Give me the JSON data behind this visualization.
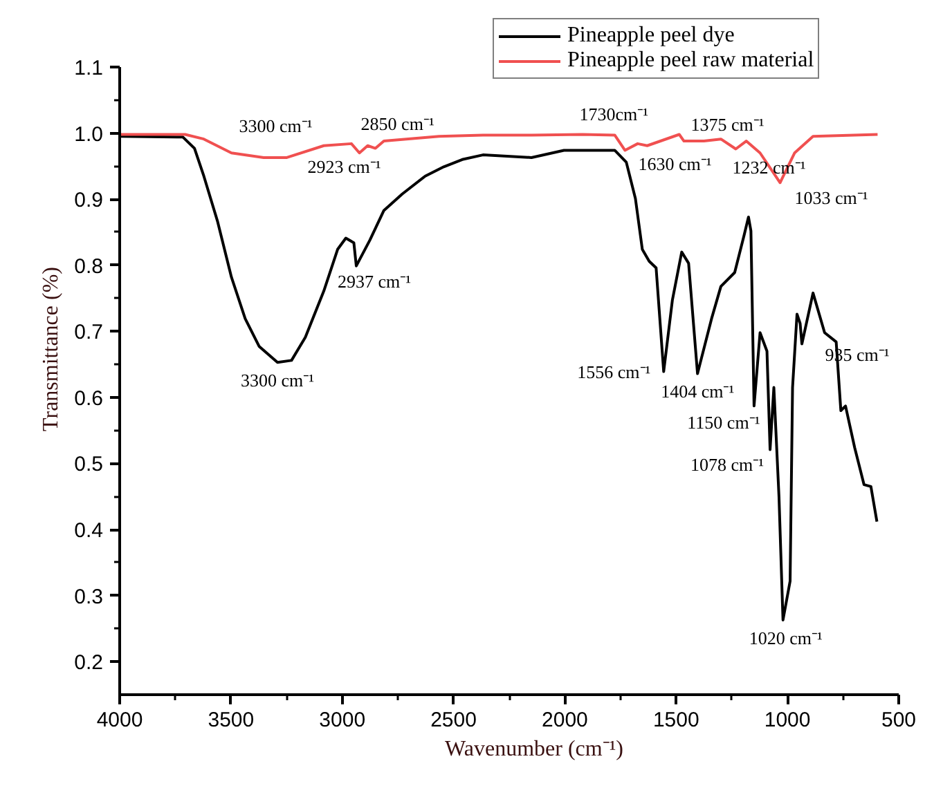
{
  "chart_data": {
    "type": "line",
    "xlabel": "Wavenumber (cm⁻¹)",
    "ylabel": "Transmittance (%)",
    "xlim": [
      4000,
      500
    ],
    "ylim": [
      0.15,
      1.1
    ],
    "xticks": [
      4000,
      {
        "value": 3750,
        "label": null
      },
      3500,
      {
        "value": 3250,
        "label": null
      },
      3000,
      {
        "value": 2750,
        "label": null
      },
      2500,
      {
        "value": 2250,
        "label": null
      },
      2000,
      {
        "value": 1750,
        "label": null
      },
      1500,
      {
        "value": 1250,
        "label": null
      },
      1000,
      {
        "value": 750,
        "label": null
      },
      500
    ],
    "yticks": [
      0.2,
      {
        "value": 0.25,
        "label": null
      },
      0.3,
      {
        "value": 0.35,
        "label": null
      },
      0.4,
      {
        "value": 0.45,
        "label": null
      },
      0.5,
      {
        "value": 0.55,
        "label": null
      },
      0.6,
      {
        "value": 0.65,
        "label": null
      },
      0.7,
      {
        "value": 0.75,
        "label": null
      },
      0.8,
      {
        "value": 0.85,
        "label": null
      },
      0.9,
      {
        "value": 0.95,
        "label": null
      },
      {
        "value": 1.0,
        "label": "1.0"
      },
      {
        "value": 1.05,
        "label": null
      },
      1.1
    ],
    "grid": false,
    "legend": "top right",
    "line_style": "solid",
    "marker": "none",
    "series": [
      {
        "name": "Pineapple peel dye",
        "color": "#000000",
        "x": [
          3996,
          3716,
          3664,
          3622,
          3560,
          3498,
          3436,
          3373,
          3291,
          3228,
          3166,
          3083,
          3021,
          2984,
          2948,
          2937,
          2876,
          2813,
          2730,
          2627,
          2544,
          2461,
          2368,
          2150,
          2004,
          1776,
          1724,
          1683,
          1652,
          1621,
          1590,
          1556,
          1517,
          1475,
          1444,
          1404,
          1341,
          1299,
          1237,
          1195,
          1175,
          1164,
          1150,
          1123,
          1092,
          1078,
          1061,
          1038,
          1020,
          988,
          977,
          957,
          943,
          935,
          885,
          833,
          781,
          760,
          739,
          698,
          656,
          625,
          598
        ],
        "values": [
          0.995,
          0.994,
          0.977,
          0.935,
          0.866,
          0.782,
          0.719,
          0.677,
          0.653,
          0.656,
          0.691,
          0.761,
          0.824,
          0.841,
          0.834,
          0.799,
          0.838,
          0.883,
          0.908,
          0.935,
          0.949,
          0.96,
          0.967,
          0.963,
          0.974,
          0.974,
          0.956,
          0.901,
          0.824,
          0.806,
          0.796,
          0.639,
          0.747,
          0.82,
          0.803,
          0.636,
          0.719,
          0.768,
          0.789,
          0.845,
          0.873,
          0.852,
          0.587,
          0.698,
          0.67,
          0.521,
          0.615,
          0.45,
          0.263,
          0.322,
          0.615,
          0.726,
          0.712,
          0.681,
          0.758,
          0.698,
          0.684,
          0.58,
          0.587,
          0.524,
          0.468,
          0.465,
          0.412
        ]
      },
      {
        "name": "Pineapple peel raw material",
        "color": "#f05050",
        "x": [
          3996,
          3706,
          3622,
          3498,
          3353,
          3249,
          3083,
          2959,
          2923,
          2886,
          2851,
          2813,
          2565,
          2368,
          2150,
          1921,
          1776,
          1730,
          1673,
          1630,
          1486,
          1465,
          1375,
          1299,
          1232,
          1185,
          1123,
          1033,
          968,
          885,
          595
        ],
        "values": [
          0.998,
          0.998,
          0.991,
          0.97,
          0.963,
          0.963,
          0.981,
          0.984,
          0.97,
          0.981,
          0.977,
          0.988,
          0.995,
          0.997,
          0.997,
          0.998,
          0.997,
          0.974,
          0.984,
          0.981,
          0.998,
          0.988,
          0.988,
          0.991,
          0.976,
          0.988,
          0.97,
          0.925,
          0.97,
          0.995,
          0.998
        ]
      }
    ],
    "annotations": [
      {
        "text": "3300 cm⁻¹",
        "x": 3249,
        "y": 0.963
      },
      {
        "text": "2850 cm⁻¹",
        "x": 2851,
        "y": 0.977
      },
      {
        "text": "2923 cm⁻¹",
        "x": 2923,
        "y": 0.97
      },
      {
        "text": "2937 cm⁻¹",
        "x": 2937,
        "y": 0.799
      },
      {
        "text": "3300 cm⁻¹",
        "x": 3291,
        "y": 0.653
      },
      {
        "text": "1730cm⁻¹",
        "x": 1730,
        "y": 0.974
      },
      {
        "text": "1375 cm⁻¹",
        "x": 1375,
        "y": 0.988
      },
      {
        "text": "1630 cm⁻¹",
        "x": 1630,
        "y": 0.981
      },
      {
        "text": "1232 cm⁻¹",
        "x": 1232,
        "y": 0.976
      },
      {
        "text": "1033 cm⁻¹",
        "x": 1033,
        "y": 0.925
      },
      {
        "text": "1556 cm⁻¹",
        "x": 1556,
        "y": 0.639
      },
      {
        "text": "1404 cm⁻¹",
        "x": 1404,
        "y": 0.636
      },
      {
        "text": "935 cm⁻¹",
        "x": 935,
        "y": 0.681
      },
      {
        "text": "1150 cm⁻¹",
        "x": 1150,
        "y": 0.587
      },
      {
        "text": "1078 cm⁻¹",
        "x": 1078,
        "y": 0.521
      },
      {
        "text": "1020 cm⁻¹",
        "x": 1020,
        "y": 0.263
      }
    ]
  }
}
